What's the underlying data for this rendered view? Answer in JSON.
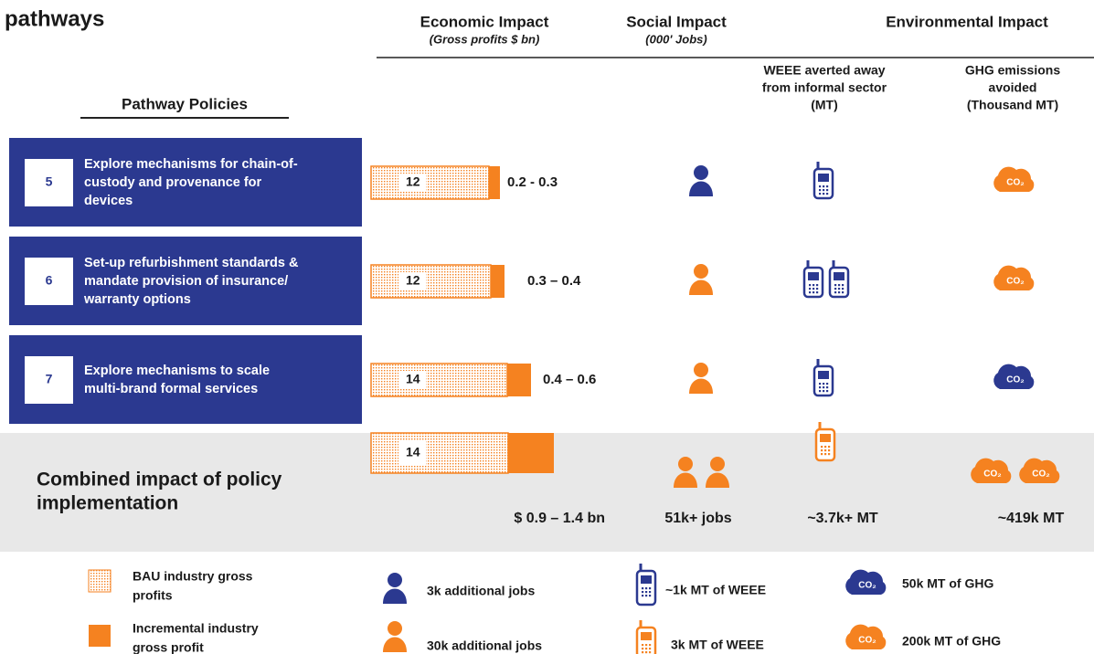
{
  "header": {
    "title": "pathways",
    "columns": [
      {
        "title": "Economic Impact",
        "subtitle": "(Gross profits $ bn)"
      },
      {
        "title": "Social Impact",
        "subtitle": "(000' Jobs)"
      },
      {
        "title": "Environmental Impact"
      }
    ],
    "sub_columns": [
      {
        "lines": [
          "WEEE averted away",
          "from informal sector",
          "(MT)"
        ]
      },
      {
        "lines": [
          "GHG emissions",
          "avoided",
          "(Thousand MT)"
        ]
      }
    ],
    "policies_label": "Pathway Policies"
  },
  "rows": [
    {
      "number": 5,
      "text": [
        "Explore mechanisms for chain-of-",
        "custody and provenance for",
        "devices"
      ],
      "bau": 12,
      "range": "0.2 - 0.3"
    },
    {
      "number": 6,
      "text": [
        "Set-up refurbishment standards &",
        "mandate provision of insurance/",
        "warranty options"
      ],
      "bau": 12,
      "range": "0.3 – 0.4"
    },
    {
      "number": 7,
      "text": [
        "Explore mechanisms to scale",
        "multi-brand formal services"
      ],
      "bau": 14,
      "range": "0.4 – 0.6"
    }
  ],
  "combined": {
    "label": [
      "Combined impact of policy",
      "implementation"
    ],
    "bau": 14,
    "economic": "$ 0.9 – 1.4 bn",
    "social": "51k+ jobs",
    "weee": "~3.7k+  MT",
    "ghg": "~419k MT"
  },
  "icon_text": "CO₂",
  "legend": {
    "bau": [
      "BAU industry gross",
      "profits"
    ],
    "incremental": [
      "Incremental industry",
      "gross profit"
    ],
    "jobs_small": "3k additional jobs",
    "jobs_large": "30k additional jobs",
    "weee_small": "~1k MT of WEEE",
    "weee_large": "3k MT of WEEE",
    "ghg_small": "50k MT of GHG",
    "ghg_large": "200k MT of GHG"
  }
}
